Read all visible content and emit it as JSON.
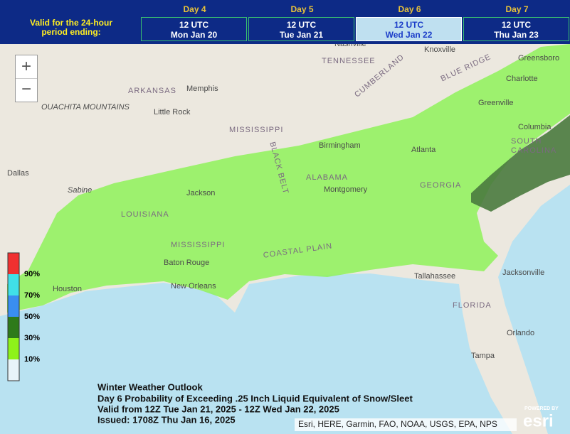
{
  "header": {
    "period_label": [
      "Valid for the 24-hour",
      "period ending:"
    ],
    "days": [
      {
        "day": "Day 4",
        "time": "12 UTC",
        "date": "Mon Jan 20"
      },
      {
        "day": "Day 5",
        "time": "12 UTC",
        "date": "Tue Jan 21"
      },
      {
        "day": "Day 6",
        "time": "12 UTC",
        "date": "Wed Jan 22"
      },
      {
        "day": "Day 7",
        "time": "12 UTC",
        "date": "Thu Jan 23"
      }
    ]
  },
  "zoom": {
    "in": "+",
    "out": "−"
  },
  "legend": {
    "labels": [
      "90%",
      "70%",
      "50%",
      "30%",
      "10%"
    ]
  },
  "map": {
    "labels": [
      "Dallas",
      "Houston",
      "ARKANSAS",
      "OUACHITA MOUNTAINS",
      "Little Rock",
      "Memphis",
      "MISSISSIPPI",
      "TENNESSEE",
      "Nashville",
      "Knoxville",
      "Greensboro",
      "Charlotte",
      "Greenville",
      "Columbia",
      "SOUTH",
      "CAROLINA",
      "Birmingham",
      "Atlanta",
      "ALABAMA",
      "Montgomery",
      "GEORGIA",
      "Jackson",
      "LOUISIANA",
      "MISSISSIPPI",
      "Baton Rouge",
      "New Orleans",
      "COASTAL PLAIN",
      "BLACK BELT",
      "Tallahassee",
      "Jacksonville",
      "FLORIDA",
      "Orlando",
      "Tampa",
      "Sabine",
      "CUMBERLAND",
      "BLUE RIDGE"
    ]
  },
  "info": {
    "title": "Winter Weather Outlook",
    "lines": [
      "Day 6 Probability of Exceeding .25 Inch Liquid Equivalent of Snow/Sleet",
      "Valid from 12Z Tue Jan 21, 2025 - 12Z Wed Jan 22, 2025",
      "Issued: 1708Z Thu Jan 16, 2025"
    ]
  },
  "attribution": "Esri, HERE, Garmin, FAO, NOAA, USGS, EPA, NPS",
  "logo": {
    "small": "POWERED BY",
    "brand": "esri"
  }
}
